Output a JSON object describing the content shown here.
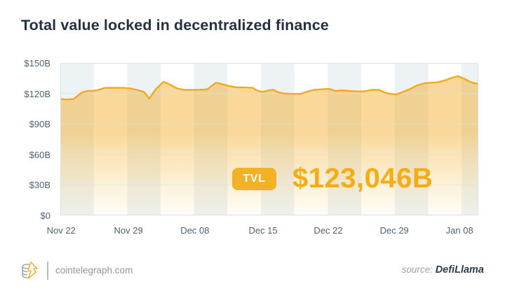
{
  "title": "Total value locked in decentralized finance",
  "footer": {
    "site": "cointelegraph.com",
    "source_label": "source:",
    "source_name": "DefiLlama"
  },
  "colors": {
    "accent_gold_line": "#f2a91c",
    "badge_gold": "#f2b127",
    "value_gold": "#f4ad15",
    "title_text": "#233140",
    "axis_text": "#53626f",
    "band_shade": "#edf2f5",
    "gridline": "#dbe3e9",
    "plot_border": "#d9e2e8"
  },
  "icons": {
    "logo": "cointelegraph-coin-stack-lightning-logo"
  },
  "chart_data": {
    "type": "area",
    "title": "Total value locked in decentralized finance",
    "unit": "$B",
    "xlabel": "",
    "ylabel": "",
    "ylim": [
      0,
      150
    ],
    "grid": "horizontal",
    "legend_position": "none",
    "background": "alternating vertical bands",
    "highlight": {
      "badge_label": "TVL",
      "value": "$123,046B"
    },
    "y_ticks": [
      {
        "v": 0,
        "label": "$0"
      },
      {
        "v": 30,
        "label": "$30B"
      },
      {
        "v": 60,
        "label": "$60B"
      },
      {
        "v": 90,
        "label": "$90B"
      },
      {
        "v": 120,
        "label": "$120B"
      },
      {
        "v": 150,
        "label": "$150B"
      }
    ],
    "x_ticks": [
      {
        "f": 0.002,
        "label": "Nov 22"
      },
      {
        "f": 0.163,
        "label": "Nov 29"
      },
      {
        "f": 0.322,
        "label": "Dec 08"
      },
      {
        "f": 0.485,
        "label": "Dec 15"
      },
      {
        "f": 0.641,
        "label": "Dec 22"
      },
      {
        "f": 0.799,
        "label": "Dec 29"
      },
      {
        "f": 0.955,
        "label": "Jan 08"
      }
    ],
    "series": [
      {
        "name": "TVL",
        "points": [
          [
            0.0,
            114.5
          ],
          [
            0.015,
            114
          ],
          [
            0.032,
            114.5
          ],
          [
            0.052,
            121
          ],
          [
            0.065,
            122.5
          ],
          [
            0.079,
            122.5
          ],
          [
            0.091,
            123.5
          ],
          [
            0.107,
            125.5
          ],
          [
            0.129,
            125.5
          ],
          [
            0.149,
            125.5
          ],
          [
            0.166,
            125
          ],
          [
            0.183,
            123.5
          ],
          [
            0.2,
            121.5
          ],
          [
            0.213,
            115
          ],
          [
            0.228,
            124
          ],
          [
            0.247,
            131.5
          ],
          [
            0.263,
            128.5
          ],
          [
            0.279,
            125
          ],
          [
            0.295,
            123.5
          ],
          [
            0.312,
            123.5
          ],
          [
            0.331,
            123.5
          ],
          [
            0.351,
            124
          ],
          [
            0.372,
            130.5
          ],
          [
            0.384,
            129.5
          ],
          [
            0.401,
            127.5
          ],
          [
            0.421,
            126
          ],
          [
            0.44,
            126
          ],
          [
            0.46,
            125.5
          ],
          [
            0.473,
            122.5
          ],
          [
            0.485,
            121.5
          ],
          [
            0.498,
            123
          ],
          [
            0.51,
            123.5
          ],
          [
            0.522,
            121
          ],
          [
            0.535,
            120
          ],
          [
            0.552,
            119.5
          ],
          [
            0.574,
            119.5
          ],
          [
            0.589,
            121.5
          ],
          [
            0.606,
            123.5
          ],
          [
            0.622,
            124
          ],
          [
            0.644,
            124.5
          ],
          [
            0.658,
            122.5
          ],
          [
            0.673,
            123
          ],
          [
            0.69,
            122.5
          ],
          [
            0.708,
            122
          ],
          [
            0.725,
            122
          ],
          [
            0.745,
            123.5
          ],
          [
            0.762,
            123.5
          ],
          [
            0.775,
            121
          ],
          [
            0.79,
            119.5
          ],
          [
            0.803,
            119
          ],
          [
            0.82,
            121.5
          ],
          [
            0.837,
            124.5
          ],
          [
            0.854,
            128
          ],
          [
            0.871,
            130
          ],
          [
            0.888,
            130.5
          ],
          [
            0.904,
            131
          ],
          [
            0.921,
            133
          ],
          [
            0.938,
            135.5
          ],
          [
            0.951,
            137
          ],
          [
            0.966,
            134.5
          ],
          [
            0.98,
            131.5
          ],
          [
            0.992,
            130
          ],
          [
            1.0,
            129.5
          ]
        ]
      }
    ]
  }
}
